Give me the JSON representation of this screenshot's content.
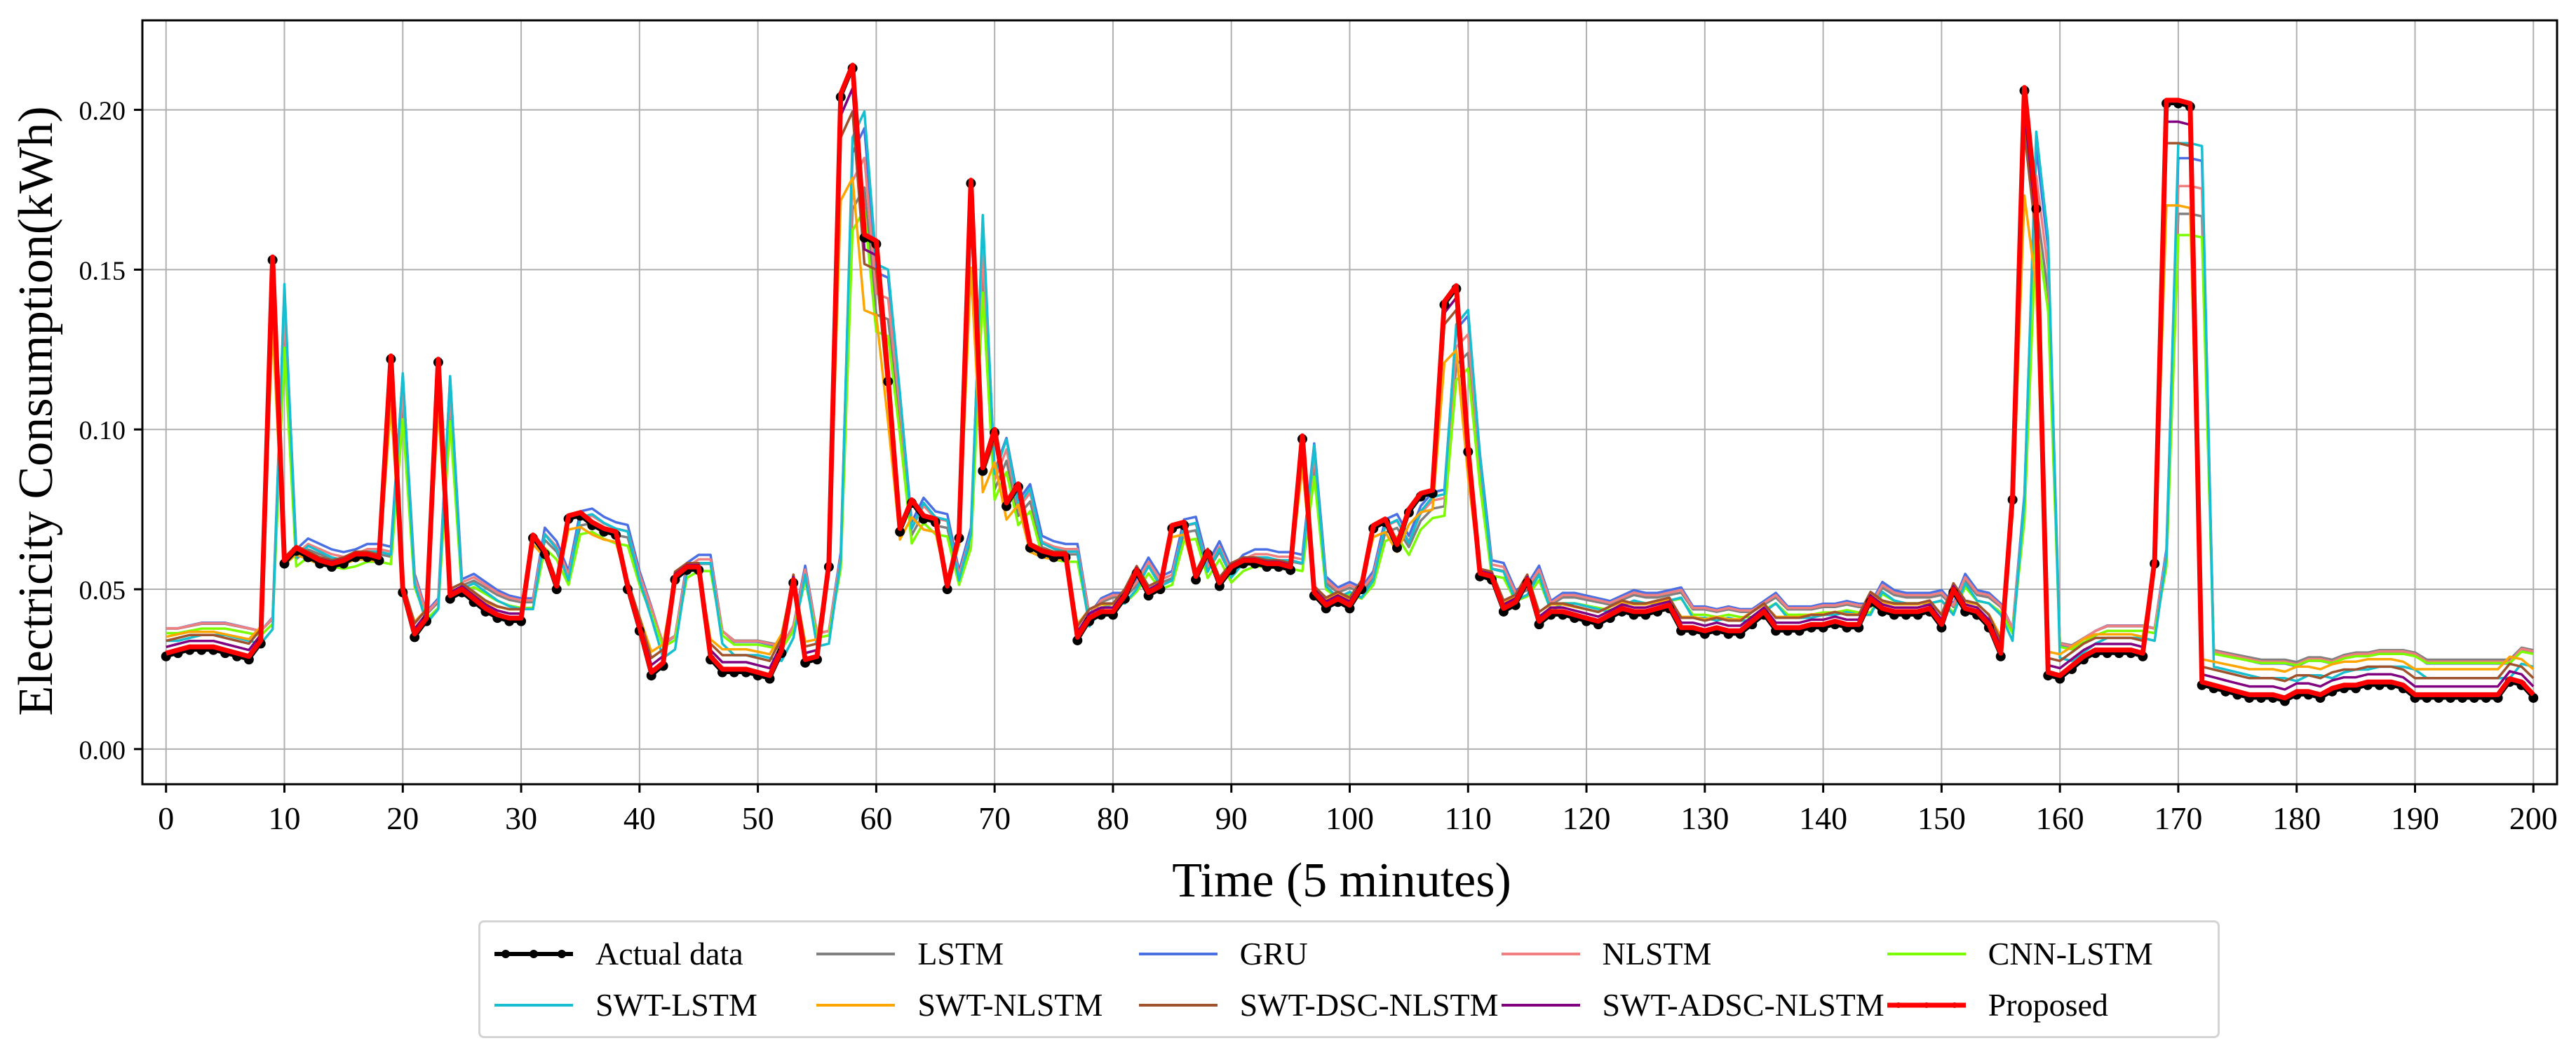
{
  "chart_data": {
    "type": "line",
    "xlabel": "Time (5 minutes)",
    "ylabel": "Electricity Consumption(kWh)",
    "xlim": [
      -2,
      202
    ],
    "ylim": [
      -0.011,
      0.228
    ],
    "xticks": [
      0,
      10,
      20,
      30,
      40,
      50,
      60,
      70,
      80,
      90,
      100,
      110,
      120,
      130,
      140,
      150,
      160,
      170,
      180,
      190,
      200
    ],
    "xtick_labels": [
      "0",
      "10",
      "20",
      "30",
      "40",
      "50",
      "60",
      "70",
      "80",
      "90",
      "100",
      "110",
      "120",
      "130",
      "140",
      "150",
      "160",
      "170",
      "180",
      "190",
      "200"
    ],
    "yticks": [
      0.0,
      0.05,
      0.1,
      0.15,
      0.2
    ],
    "ytick_labels": [
      "0.00",
      "0.05",
      "0.10",
      "0.15",
      "0.20"
    ],
    "grid": true,
    "legend_position": "bottom-center",
    "actual_anchors": [
      [
        0,
        0.029
      ],
      [
        1,
        0.03
      ],
      [
        2,
        0.031
      ],
      [
        3,
        0.031
      ],
      [
        4,
        0.031
      ],
      [
        5,
        0.03
      ],
      [
        6,
        0.029
      ],
      [
        7,
        0.028
      ],
      [
        8,
        0.033
      ],
      [
        9,
        0.153
      ],
      [
        10,
        0.058
      ],
      [
        11,
        0.062
      ],
      [
        12,
        0.06
      ],
      [
        13,
        0.058
      ],
      [
        14,
        0.057
      ],
      [
        15,
        0.058
      ],
      [
        16,
        0.06
      ],
      [
        17,
        0.06
      ],
      [
        18,
        0.059
      ],
      [
        19,
        0.122
      ],
      [
        20,
        0.049
      ],
      [
        21,
        0.035
      ],
      [
        22,
        0.04
      ],
      [
        23,
        0.121
      ],
      [
        24,
        0.047
      ],
      [
        25,
        0.049
      ],
      [
        26,
        0.046
      ],
      [
        27,
        0.043
      ],
      [
        28,
        0.041
      ],
      [
        29,
        0.04
      ],
      [
        30,
        0.04
      ],
      [
        31,
        0.066
      ],
      [
        32,
        0.061
      ],
      [
        33,
        0.05
      ],
      [
        34,
        0.072
      ],
      [
        35,
        0.073
      ],
      [
        36,
        0.07
      ],
      [
        37,
        0.068
      ],
      [
        38,
        0.067
      ],
      [
        39,
        0.05
      ],
      [
        40,
        0.037
      ],
      [
        41,
        0.023
      ],
      [
        42,
        0.026
      ],
      [
        43,
        0.053
      ],
      [
        44,
        0.056
      ],
      [
        45,
        0.056
      ],
      [
        46,
        0.028
      ],
      [
        47,
        0.024
      ],
      [
        48,
        0.024
      ],
      [
        49,
        0.024
      ],
      [
        50,
        0.023
      ],
      [
        51,
        0.022
      ],
      [
        52,
        0.03
      ],
      [
        53,
        0.052
      ],
      [
        54,
        0.027
      ],
      [
        55,
        0.028
      ],
      [
        56,
        0.057
      ],
      [
        57,
        0.204
      ],
      [
        58,
        0.213
      ],
      [
        59,
        0.16
      ],
      [
        60,
        0.158
      ],
      [
        61,
        0.115
      ],
      [
        62,
        0.068
      ],
      [
        63,
        0.077
      ],
      [
        64,
        0.072
      ],
      [
        65,
        0.071
      ],
      [
        66,
        0.05
      ],
      [
        67,
        0.066
      ],
      [
        68,
        0.177
      ],
      [
        69,
        0.087
      ],
      [
        70,
        0.099
      ],
      [
        71,
        0.076
      ],
      [
        72,
        0.082
      ],
      [
        73,
        0.063
      ],
      [
        74,
        0.061
      ],
      [
        75,
        0.06
      ],
      [
        76,
        0.06
      ],
      [
        77,
        0.034
      ],
      [
        78,
        0.04
      ],
      [
        79,
        0.042
      ],
      [
        80,
        0.042
      ],
      [
        81,
        0.047
      ],
      [
        82,
        0.055
      ],
      [
        83,
        0.048
      ],
      [
        84,
        0.05
      ],
      [
        85,
        0.069
      ],
      [
        86,
        0.07
      ],
      [
        87,
        0.053
      ],
      [
        88,
        0.061
      ],
      [
        89,
        0.051
      ],
      [
        90,
        0.056
      ],
      [
        91,
        0.058
      ],
      [
        92,
        0.058
      ],
      [
        93,
        0.057
      ],
      [
        94,
        0.057
      ],
      [
        95,
        0.056
      ],
      [
        96,
        0.097
      ],
      [
        97,
        0.048
      ],
      [
        98,
        0.044
      ],
      [
        99,
        0.046
      ],
      [
        100,
        0.044
      ],
      [
        101,
        0.05
      ],
      [
        102,
        0.069
      ],
      [
        103,
        0.071
      ],
      [
        104,
        0.063
      ],
      [
        105,
        0.074
      ],
      [
        106,
        0.079
      ],
      [
        107,
        0.08
      ],
      [
        108,
        0.139
      ],
      [
        109,
        0.144
      ],
      [
        110,
        0.093
      ],
      [
        111,
        0.054
      ],
      [
        112,
        0.053
      ],
      [
        113,
        0.043
      ],
      [
        114,
        0.045
      ],
      [
        115,
        0.052
      ],
      [
        116,
        0.039
      ],
      [
        117,
        0.042
      ],
      [
        118,
        0.042
      ],
      [
        119,
        0.041
      ],
      [
        120,
        0.04
      ],
      [
        121,
        0.039
      ],
      [
        122,
        0.041
      ],
      [
        123,
        0.043
      ],
      [
        124,
        0.042
      ],
      [
        125,
        0.042
      ],
      [
        126,
        0.043
      ],
      [
        127,
        0.044
      ],
      [
        128,
        0.037
      ],
      [
        129,
        0.037
      ],
      [
        130,
        0.036
      ],
      [
        131,
        0.037
      ],
      [
        132,
        0.036
      ],
      [
        133,
        0.036
      ],
      [
        134,
        0.039
      ],
      [
        135,
        0.042
      ],
      [
        136,
        0.037
      ],
      [
        137,
        0.037
      ],
      [
        138,
        0.037
      ],
      [
        139,
        0.038
      ],
      [
        140,
        0.038
      ],
      [
        141,
        0.039
      ],
      [
        142,
        0.038
      ],
      [
        143,
        0.038
      ],
      [
        144,
        0.046
      ],
      [
        145,
        0.043
      ],
      [
        146,
        0.042
      ],
      [
        147,
        0.042
      ],
      [
        148,
        0.042
      ],
      [
        149,
        0.043
      ],
      [
        150,
        0.038
      ],
      [
        151,
        0.049
      ],
      [
        152,
        0.043
      ],
      [
        153,
        0.042
      ],
      [
        154,
        0.038
      ],
      [
        155,
        0.029
      ],
      [
        156,
        0.078
      ],
      [
        157,
        0.206
      ],
      [
        158,
        0.169
      ],
      [
        159,
        0.023
      ],
      [
        160,
        0.022
      ],
      [
        161,
        0.025
      ],
      [
        162,
        0.028
      ],
      [
        163,
        0.03
      ],
      [
        164,
        0.03
      ],
      [
        165,
        0.03
      ],
      [
        166,
        0.03
      ],
      [
        167,
        0.029
      ],
      [
        168,
        0.058
      ],
      [
        169,
        0.202
      ],
      [
        170,
        0.202
      ],
      [
        171,
        0.201
      ],
      [
        172,
        0.02
      ],
      [
        173,
        0.019
      ],
      [
        174,
        0.018
      ],
      [
        175,
        0.017
      ],
      [
        176,
        0.016
      ],
      [
        177,
        0.016
      ],
      [
        178,
        0.016
      ],
      [
        179,
        0.015
      ],
      [
        180,
        0.017
      ],
      [
        181,
        0.017
      ],
      [
        182,
        0.016
      ],
      [
        183,
        0.018
      ],
      [
        184,
        0.019
      ],
      [
        185,
        0.019
      ],
      [
        186,
        0.02
      ],
      [
        187,
        0.02
      ],
      [
        188,
        0.02
      ],
      [
        189,
        0.019
      ],
      [
        190,
        0.016
      ],
      [
        191,
        0.016
      ],
      [
        192,
        0.016
      ],
      [
        193,
        0.016
      ],
      [
        194,
        0.016
      ],
      [
        195,
        0.016
      ],
      [
        196,
        0.016
      ],
      [
        197,
        0.016
      ],
      [
        198,
        0.021
      ],
      [
        199,
        0.02
      ],
      [
        200,
        0.016
      ]
    ],
    "series": [
      {
        "name": "Actual data",
        "color": "#000000",
        "lag": 0,
        "scale": 1.0,
        "offset": 0.0,
        "markers": true
      },
      {
        "name": "LSTM",
        "color": "#808080",
        "lag": 1,
        "scale": 0.75,
        "offset": 0.004
      },
      {
        "name": "GRU",
        "color": "#4a6fe3",
        "lag": 1,
        "scale": 0.85,
        "offset": 0.006
      },
      {
        "name": "NLSTM",
        "color": "#f08080",
        "lag": 1,
        "scale": 0.8,
        "offset": 0.005
      },
      {
        "name": "CNN-LSTM",
        "color": "#7cfc00",
        "lag": 1,
        "scale": 0.72,
        "offset": 0.002
      },
      {
        "name": "SWT-LSTM",
        "color": "#17becf",
        "lag": 1,
        "scale": 0.9,
        "offset": 0.003
      },
      {
        "name": "SWT-NLSTM",
        "color": "#ffa500",
        "lag": 0,
        "scale": 0.78,
        "offset": 0.002
      },
      {
        "name": "SWT-DSC-NLSTM",
        "color": "#a0522d",
        "lag": 0,
        "scale": 0.9,
        "offset": 0.003
      },
      {
        "name": "SWT-ADSC-NLSTM",
        "color": "#800080",
        "lag": 0,
        "scale": 0.95,
        "offset": 0.002
      },
      {
        "name": "Proposed",
        "color": "#ff0000",
        "lag": 0,
        "scale": 1.0,
        "offset": 0.001,
        "bold": true
      }
    ]
  }
}
